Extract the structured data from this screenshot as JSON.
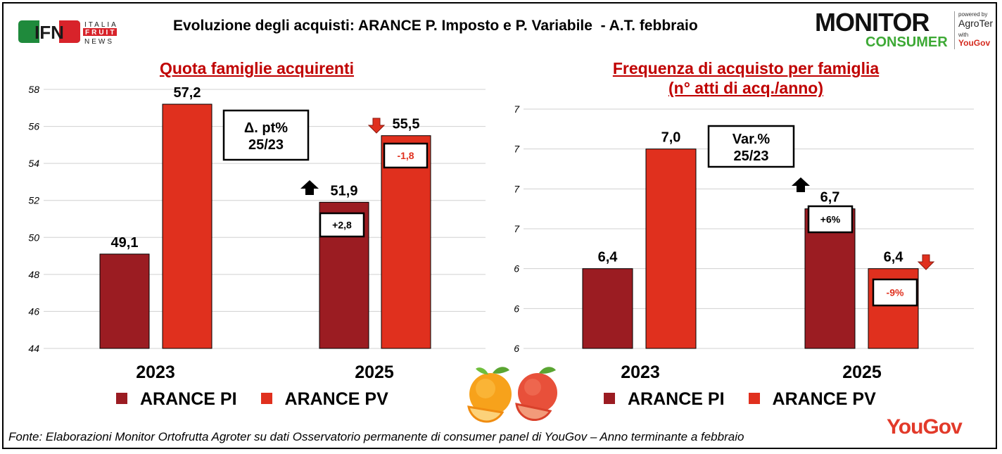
{
  "title": "Evoluzione degli acquisti: ARANCE P. Imposto e P. Variabile  - A.T. febbraio",
  "logo_ifn": {
    "mark": "IFN",
    "line1": "ITALIA",
    "line2": "FRUIT",
    "line3": "NEWS"
  },
  "logo_monitor": {
    "monitor": "MONITOR",
    "consumer": "CONSUMER",
    "powered": "powered by",
    "agroter": "AgroTer",
    "with": "with",
    "yougov": "YouGov"
  },
  "source": "Fonte: Elaborazioni Monitor Ortofrutta Agroter su dati Osservatorio permanente di consumer panel di YouGov  – Anno terminante a febbraio",
  "yougov_logo": "YouGov",
  "colors": {
    "pi": "#9b1c22",
    "pv": "#e0301e",
    "title": "#c00000",
    "arrow_up": "#000000",
    "arrow_down": "#e0301e"
  },
  "icons": [
    "orange-fruit-icon",
    "grapefruit-icon",
    "arrow-up-icon",
    "arrow-down-icon"
  ],
  "chart_data": [
    {
      "type": "bar",
      "title": "Quota famiglie acquirenti",
      "categories": [
        "2023",
        "2025"
      ],
      "series": [
        {
          "name": "ARANCE PI",
          "values": [
            49.1,
            51.9
          ],
          "labels": [
            "49,1",
            "51,9"
          ]
        },
        {
          "name": "ARANCE PV",
          "values": [
            57.2,
            55.5
          ],
          "labels": [
            "57,2",
            "55,5"
          ]
        }
      ],
      "ylim": [
        44,
        58
      ],
      "yticks": [
        44,
        46,
        48,
        50,
        52,
        54,
        56,
        58
      ],
      "ytick_labels": [
        "44",
        "46",
        "48",
        "50",
        "52",
        "54",
        "56",
        "58"
      ],
      "grid": true,
      "legend": "bottom",
      "note_box": {
        "line1": "Δ. pt%",
        "line2": "25/23"
      },
      "changes": [
        {
          "series": "ARANCE PI",
          "label": "+2,8",
          "direction": "up"
        },
        {
          "series": "ARANCE PV",
          "label": "-1,8",
          "direction": "down"
        }
      ]
    },
    {
      "type": "bar",
      "title": "Frequenza di acquisto per famiglia",
      "subtitle": "(n° atti di acq./anno)",
      "categories": [
        "2023",
        "2025"
      ],
      "series": [
        {
          "name": "ARANCE PI",
          "values": [
            6.4,
            6.7
          ],
          "labels": [
            "6,4",
            "6,7"
          ]
        },
        {
          "name": "ARANCE PV",
          "values": [
            7.0,
            6.4
          ],
          "labels": [
            "7,0",
            "6,4"
          ]
        }
      ],
      "ylim": [
        6.0,
        7.2
      ],
      "yticks": [
        6.0,
        6.2,
        6.4,
        6.6,
        6.8,
        7.0,
        7.2
      ],
      "ytick_labels": [
        "6",
        "6",
        "6",
        "7",
        "7",
        "7",
        "7"
      ],
      "grid": true,
      "legend": "bottom",
      "note_box": {
        "line1": "Var.%",
        "line2": "25/23"
      },
      "changes": [
        {
          "series": "ARANCE PI",
          "label": "+6%",
          "direction": "up"
        },
        {
          "series": "ARANCE PV",
          "label": "-9%",
          "direction": "down"
        }
      ]
    }
  ]
}
